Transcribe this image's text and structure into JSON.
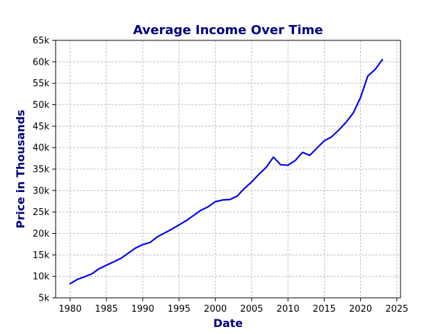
{
  "chart_data": {
    "type": "line",
    "title": "Average Income Over Time",
    "xlabel": "Date",
    "ylabel": "Price in Thousands",
    "xlim": [
      1978,
      2025.5
    ],
    "ylim": [
      5000,
      65000
    ],
    "x_ticks": [
      1980,
      1985,
      1990,
      1995,
      2000,
      2005,
      2010,
      2015,
      2020,
      2025
    ],
    "x_tick_labels": [
      "1980",
      "1985",
      "1990",
      "1995",
      "2000",
      "2005",
      "2010",
      "2015",
      "2020",
      "2025"
    ],
    "y_ticks": [
      5000,
      10000,
      15000,
      20000,
      25000,
      30000,
      35000,
      40000,
      45000,
      50000,
      55000,
      60000,
      65000
    ],
    "y_tick_labels": [
      "5k",
      "10k",
      "15k",
      "20k",
      "25k",
      "30k",
      "35k",
      "40k",
      "45k",
      "50k",
      "55k",
      "60k",
      "65k"
    ],
    "grid": true,
    "series": [
      {
        "color": "#0000ee",
        "x": [
          1980,
          1981,
          1982,
          1983,
          1984,
          1985,
          1986,
          1987,
          1988,
          1989,
          1990,
          1991,
          1992,
          1993,
          1994,
          1995,
          1996,
          1997,
          1998,
          1999,
          2000,
          2001,
          2002,
          2003,
          2004,
          2005,
          2006,
          2007,
          2008,
          2009,
          2010,
          2011,
          2012,
          2013,
          2014,
          2015,
          2016,
          2017,
          2018,
          2019,
          2020,
          2021,
          2022,
          2023
        ],
        "y": [
          8300,
          9300,
          9900,
          10600,
          11800,
          12600,
          13400,
          14200,
          15400,
          16600,
          17400,
          17900,
          19200,
          20100,
          21000,
          22000,
          23000,
          24200,
          25400,
          26200,
          27400,
          27800,
          27900,
          28700,
          30500,
          32000,
          33800,
          35400,
          37800,
          36000,
          35900,
          37000,
          38900,
          38200,
          39900,
          41600,
          42500,
          44100,
          45900,
          48100,
          51700,
          56700,
          58200,
          60500
        ]
      }
    ],
    "colors": {
      "line": "#0000ee",
      "title": "#000080",
      "axis_label": "#000080",
      "grid": "#b0b0b0"
    }
  }
}
